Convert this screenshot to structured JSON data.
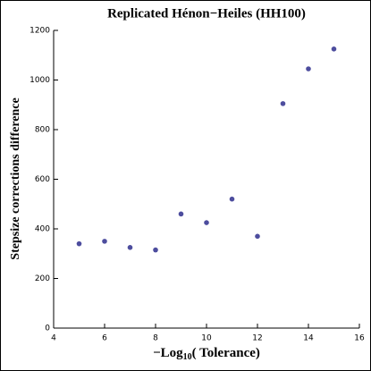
{
  "chart_data": {
    "type": "scatter",
    "title": "Replicated Hénon−Heiles (HH100)",
    "x_label": {
      "main": "−Log",
      "sub": "10",
      "rest": "( Tolerance)"
    },
    "y_label": "Stepsize corrections difference",
    "x": [
      5,
      6,
      7,
      8,
      9,
      10,
      11,
      12,
      13,
      14,
      15
    ],
    "values": [
      340,
      350,
      325,
      315,
      460,
      425,
      520,
      370,
      905,
      1045,
      1125
    ],
    "color": "#4d4d9e",
    "xlim": [
      4,
      16
    ],
    "xticks": [
      4,
      6,
      8,
      10,
      12,
      14,
      16
    ],
    "ylim": [
      0,
      1200
    ],
    "yticks": [
      0,
      200,
      400,
      600,
      800,
      1000,
      1200
    ],
    "grid": false
  }
}
